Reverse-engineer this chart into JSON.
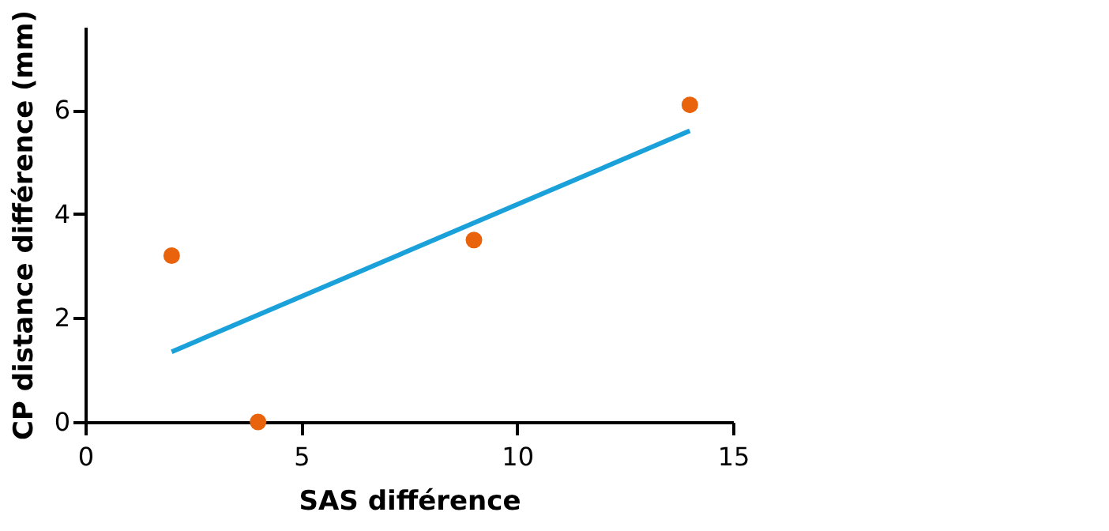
{
  "chart_data": {
    "type": "scatter",
    "xlabel": "SAS différence",
    "ylabel": "CP distance différence (mm)",
    "xlim": [
      0,
      15
    ],
    "xticks": [
      0,
      5,
      10,
      15
    ],
    "ylim": [
      0,
      7.6
    ],
    "yticks": [
      0,
      2,
      4,
      6
    ],
    "grid": false,
    "series": [
      {
        "color": "#e8630c",
        "marker": "circle",
        "x": [
          2,
          4,
          9,
          14
        ],
        "values": [
          3.2,
          0,
          3.5,
          6.1
        ]
      },
      {
        "type": "line",
        "color": "#1ba1da",
        "x": [
          2,
          14
        ],
        "values": [
          1.35,
          5.6
        ],
        "line_style": "solid"
      }
    ]
  }
}
